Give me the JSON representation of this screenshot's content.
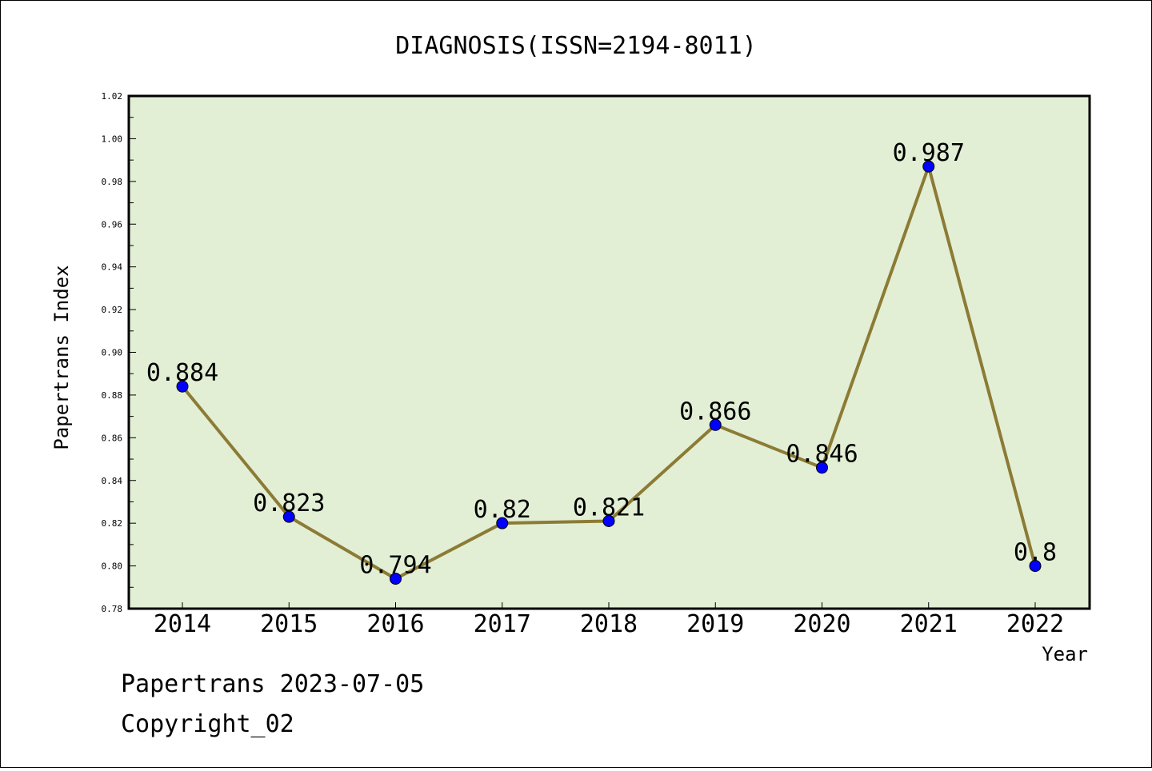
{
  "chart_data": {
    "type": "line",
    "title": "DIAGNOSIS(ISSN=2194-8011)",
    "xlabel": "Year",
    "ylabel": "Papertrans Index",
    "x": [
      "2014",
      "2015",
      "2016",
      "2017",
      "2018",
      "2019",
      "2020",
      "2021",
      "2022"
    ],
    "series": [
      {
        "values": [
          0.884,
          0.823,
          0.794,
          0.82,
          0.821,
          0.866,
          0.846,
          0.987,
          0.8
        ]
      }
    ],
    "data_labels": [
      "0.884",
      "0.823",
      "0.794",
      "0.82",
      "0.821",
      "0.866",
      "0.846",
      "0.987",
      "0.8"
    ],
    "ylim": [
      0.78,
      1.02
    ],
    "yticks": [
      "0.78",
      "0.80",
      "0.82",
      "0.84",
      "0.86",
      "0.88",
      "0.90",
      "0.92",
      "0.94",
      "0.96",
      "0.98",
      "1.00",
      "1.02"
    ],
    "grid": false,
    "colors": {
      "plot_background": "#e2efd5",
      "line": "#8c7b35",
      "marker": "#0000ff"
    }
  },
  "footer": {
    "line1": "Papertrans 2023-07-05",
    "line2": "Copyright_02"
  }
}
